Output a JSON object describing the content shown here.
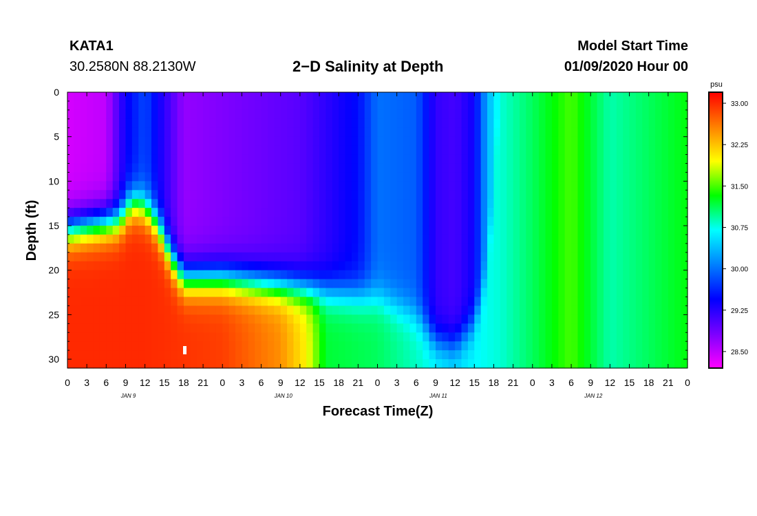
{
  "header": {
    "station": "KATA1",
    "coords": "30.2580N 88.2130W",
    "title": "2−D Salinity at Depth",
    "model_start_label": "Model Start Time",
    "model_start_time": "01/09/2020 Hour 00"
  },
  "chart_data": {
    "type": "heatmap",
    "title": "2−D Salinity at Depth",
    "xlabel": "Forecast Time(Z)",
    "ylabel": "Depth (ft)",
    "x_range_hours": [
      0,
      96
    ],
    "ylim": [
      0,
      31
    ],
    "y_inverted": true,
    "y_ticks": [
      0,
      5,
      10,
      15,
      20,
      25,
      30
    ],
    "x_tick_labels": [
      "0",
      "3",
      "6",
      "9",
      "12",
      "15",
      "18",
      "21",
      "0",
      "3",
      "6",
      "9",
      "12",
      "15",
      "18",
      "21",
      "0",
      "3",
      "6",
      "9",
      "12",
      "15",
      "18",
      "21",
      "0",
      "3",
      "6",
      "9",
      "12",
      "15",
      "18",
      "21",
      "0"
    ],
    "day_labels": [
      {
        "text": "JAN 9",
        "hour": 9
      },
      {
        "text": "JAN 10",
        "hour": 33
      },
      {
        "text": "JAN 11",
        "hour": 57
      },
      {
        "text": "JAN 12",
        "hour": 81
      }
    ],
    "colorbar": {
      "unit": "psu",
      "vmin": 28.2,
      "vmax": 33.2,
      "tick_labels": [
        "33.00",
        "32.25",
        "31.50",
        "30.75",
        "30.00",
        "29.25",
        "28.50"
      ],
      "tick_values": [
        33.0,
        32.25,
        31.5,
        30.75,
        30.0,
        29.25,
        28.5
      ],
      "colors": [
        "#ff00ff",
        "#7a00ff",
        "#0000ff",
        "#0080ff",
        "#00ffff",
        "#00ff00",
        "#ffff00",
        "#ff8000",
        "#ff0000"
      ]
    },
    "surface_salinity_by_hour": [
      {
        "hour": 0,
        "value": 28.4
      },
      {
        "hour": 6,
        "value": 28.5
      },
      {
        "hour": 9,
        "value": 29.4
      },
      {
        "hour": 12,
        "value": 29.8
      },
      {
        "hour": 14,
        "value": 29.4
      },
      {
        "hour": 18,
        "value": 28.7
      },
      {
        "hour": 24,
        "value": 28.8
      },
      {
        "hour": 36,
        "value": 29.0
      },
      {
        "hour": 45,
        "value": 29.5
      },
      {
        "hour": 48,
        "value": 30.0
      },
      {
        "hour": 54,
        "value": 29.9
      },
      {
        "hour": 57,
        "value": 29.2
      },
      {
        "hour": 60,
        "value": 29.1
      },
      {
        "hour": 63,
        "value": 29.4
      },
      {
        "hour": 65,
        "value": 30.3
      },
      {
        "hour": 67,
        "value": 30.8
      },
      {
        "hour": 72,
        "value": 31.1
      },
      {
        "hour": 78,
        "value": 31.5
      },
      {
        "hour": 84,
        "value": 30.9
      },
      {
        "hour": 90,
        "value": 31.1
      },
      {
        "hour": 96,
        "value": 31.3
      }
    ],
    "bottom_salinity_by_hour": [
      {
        "hour": 0,
        "value": 33.0
      },
      {
        "hour": 12,
        "value": 33.0
      },
      {
        "hour": 24,
        "value": 32.9
      },
      {
        "hour": 33,
        "value": 32.5
      },
      {
        "hour": 37,
        "value": 32.0
      },
      {
        "hour": 40,
        "value": 31.2
      },
      {
        "hour": 48,
        "value": 31.1
      },
      {
        "hour": 60,
        "value": 30.6
      },
      {
        "hour": 67,
        "value": 30.8
      },
      {
        "hour": 72,
        "value": 31.1
      },
      {
        "hour": 78,
        "value": 31.5
      },
      {
        "hour": 84,
        "value": 30.9
      },
      {
        "hour": 96,
        "value": 31.3
      }
    ],
    "halocline_depth_ft_by_hour": [
      {
        "hour": 0,
        "value": 15.5
      },
      {
        "hour": 8,
        "value": 14.5
      },
      {
        "hour": 10,
        "value": 12.5
      },
      {
        "hour": 12,
        "value": 13.0
      },
      {
        "hour": 14,
        "value": 15.0
      },
      {
        "hour": 16,
        "value": 18.5
      },
      {
        "hour": 18,
        "value": 21.0
      },
      {
        "hour": 24,
        "value": 21.0
      },
      {
        "hour": 30,
        "value": 21.5
      },
      {
        "hour": 42,
        "value": 22.5
      },
      {
        "hour": 48,
        "value": 23.0
      },
      {
        "hour": 54,
        "value": 25.0
      },
      {
        "hour": 57,
        "value": 28.0
      },
      {
        "hour": 60,
        "value": 28.5
      },
      {
        "hour": 63,
        "value": 26.0
      },
      {
        "hour": 65,
        "value": 20.0
      },
      {
        "hour": 67,
        "value": 0
      },
      {
        "hour": 96,
        "value": 0
      }
    ]
  }
}
